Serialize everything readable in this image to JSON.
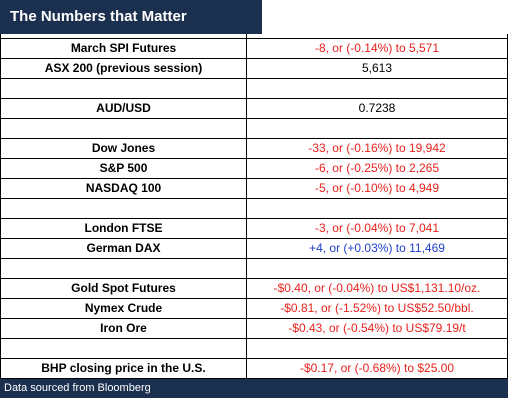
{
  "header": {
    "title": "The Numbers that Matter"
  },
  "table": {
    "groups": [
      [
        {
          "label": "March SPI Futures",
          "value": "-8, or (-0.14%) to 5,571",
          "color": "#e8221c"
        },
        {
          "label": "ASX 200 (previous session)",
          "value": "5,613",
          "color": "#000000"
        }
      ],
      [
        {
          "label": "AUD/USD",
          "value": "0.7238",
          "color": "#000000"
        }
      ],
      [
        {
          "label": "Dow Jones",
          "value": "-33, or (-0.16%) to 19,942",
          "color": "#e8221c"
        },
        {
          "label": "S&P 500",
          "value": "-6, or (-0.25%) to 2,265",
          "color": "#e8221c"
        },
        {
          "label": "NASDAQ 100",
          "value": "-5, or (-0.10%) to 4,949",
          "color": "#e8221c"
        }
      ],
      [
        {
          "label": "London FTSE",
          "value": "-3, or (-0.04%) to 7,041",
          "color": "#e8221c"
        },
        {
          "label": "German DAX",
          "value": "+4, or (+0.03%) to 11,469",
          "color": "#1f3fc8"
        }
      ],
      [
        {
          "label": "Gold Spot Futures",
          "value": "-$0.40, or (-0.04%) to US$1,131.10/oz.",
          "color": "#e8221c"
        },
        {
          "label": "Nymex Crude",
          "value": "-$0.81, or (-1.52%) to US$52.50/bbl.",
          "color": "#e8221c"
        },
        {
          "label": "Iron Ore",
          "value": "-$0.43, or (-0.54%) to US$79.19/t",
          "color": "#e8221c"
        }
      ],
      [
        {
          "label": "BHP closing price in the U.S.",
          "value": "-$0.17, or (-0.68%) to $25.00",
          "color": "#e8221c"
        }
      ]
    ]
  },
  "footer": {
    "text": "Data sourced from Bloomberg"
  }
}
